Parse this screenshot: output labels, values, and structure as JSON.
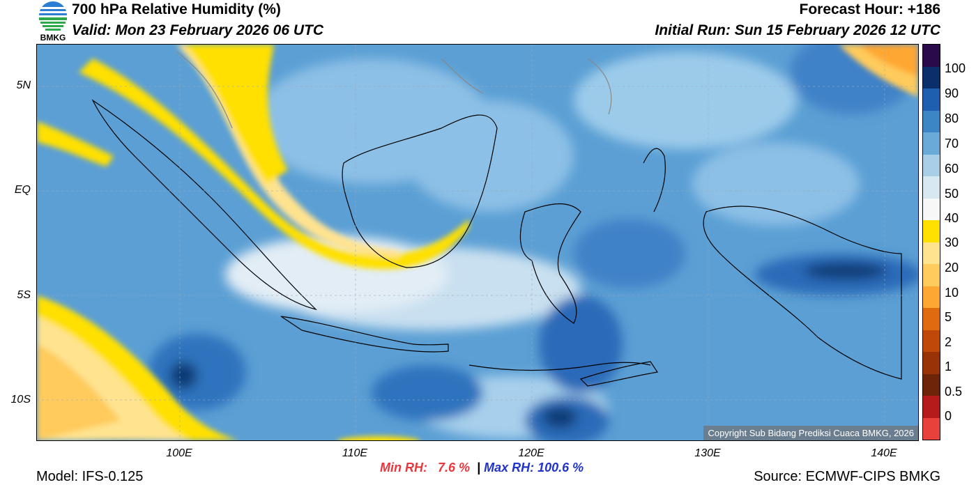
{
  "header": {
    "title": "700 hPa Relative Humidity (%)",
    "valid": "Valid: Mon 23 February 2026 06 UTC",
    "forecast_hour": "Forecast Hour: +186",
    "initial_run": "Initial Run: Sun 15 February 2026 12 UTC"
  },
  "logo": {
    "text": "BMKG"
  },
  "map": {
    "lat_labels": [
      "5N",
      "EQ",
      "5S",
      "10S"
    ],
    "lon_labels": [
      "100E",
      "110E",
      "120E",
      "130E",
      "140E"
    ],
    "copyright": "Copyright Sub Bidang Prediksi Cuaca BMKG, 2026"
  },
  "colorbar": {
    "labels": [
      "100",
      "90",
      "80",
      "70",
      "60",
      "50",
      "40",
      "30",
      "20",
      "10",
      "5",
      "2",
      "1",
      "0.5",
      "0"
    ],
    "colors": [
      "#2a0a4a",
      "#0a2f6a",
      "#1f5fb0",
      "#3d86c6",
      "#6aaad8",
      "#a9cfe8",
      "#d8e8f2",
      "#f7f7f7",
      "#ffe000",
      "#ffe38f",
      "#ffcb5c",
      "#ffa732",
      "#e06a10",
      "#c04808",
      "#9a3208",
      "#6e2408",
      "#b51b1b",
      "#e8403a"
    ]
  },
  "stats": {
    "min": "Min RH:   7.6 %",
    "sep": "|",
    "max": "Max RH: 100.6 %"
  },
  "footer": {
    "model": "Model: IFS-0.125",
    "source": "Source: ECMWF-CIPS BMKG"
  }
}
